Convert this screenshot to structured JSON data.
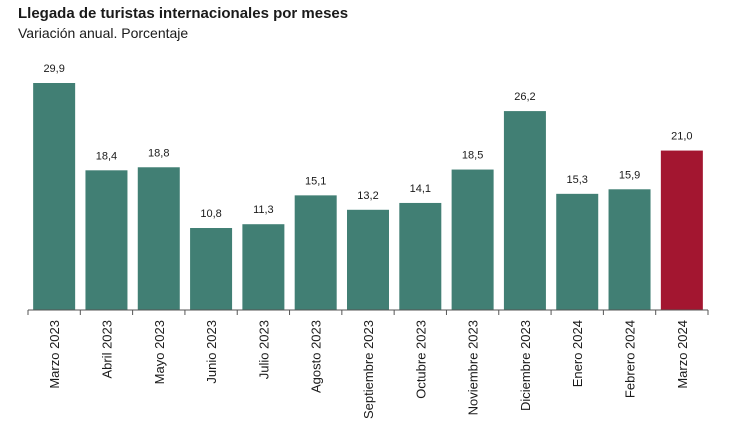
{
  "chart_data": {
    "type": "bar",
    "title": "Llegada de turistas internacionales por meses",
    "subtitle": "Variación anual. Porcentaje",
    "categories": [
      "Marzo 2023",
      "Abril 2023",
      "Mayo 2023",
      "Junio 2023",
      "Julio 2023",
      "Agosto 2023",
      "Septiembre 2023",
      "Octubre 2023",
      "Noviembre 2023",
      "Diciembre 2023",
      "Enero 2024",
      "Febrero 2024",
      "Marzo 2024"
    ],
    "values": [
      29.9,
      18.4,
      18.8,
      10.8,
      11.3,
      15.1,
      13.2,
      14.1,
      18.5,
      26.2,
      15.3,
      15.9,
      21.0
    ],
    "value_labels": [
      "29,9",
      "18,4",
      "18,8",
      "10,8",
      "11,3",
      "15,1",
      "13,2",
      "14,1",
      "18,5",
      "26,2",
      "15,3",
      "15,9",
      "21,0"
    ],
    "ylim": [
      0,
      29.9
    ],
    "grid": false,
    "colors": {
      "default": "#417F74",
      "highlight": "#A31630",
      "highlight_index": 12
    }
  }
}
